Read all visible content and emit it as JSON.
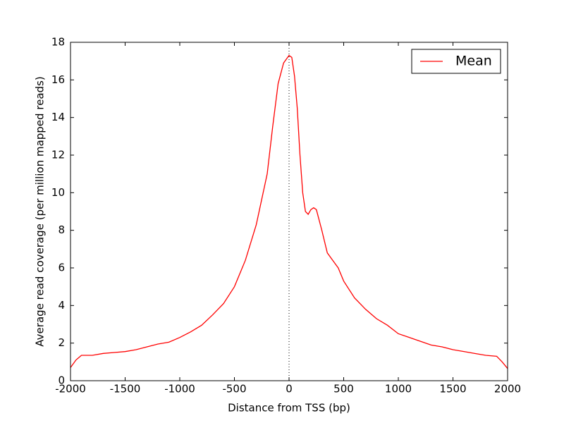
{
  "chart_data": {
    "type": "line",
    "x_label": "Distance from TSS (bp)",
    "y_label": "Average read coverage (per million mapped reads)",
    "x": [
      -2000,
      -1950,
      -1900,
      -1800,
      -1700,
      -1600,
      -1500,
      -1400,
      -1300,
      -1200,
      -1100,
      -1000,
      -900,
      -800,
      -700,
      -600,
      -500,
      -400,
      -300,
      -200,
      -150,
      -100,
      -50,
      0,
      25,
      50,
      75,
      100,
      125,
      150,
      175,
      200,
      225,
      250,
      300,
      350,
      400,
      450,
      500,
      600,
      700,
      800,
      900,
      1000,
      1100,
      1200,
      1300,
      1400,
      1500,
      1600,
      1700,
      1800,
      1900,
      1950,
      2000
    ],
    "series": [
      {
        "name": "Mean",
        "color": "#ff0000",
        "values": [
          0.7,
          1.1,
          1.35,
          1.35,
          1.45,
          1.5,
          1.55,
          1.65,
          1.8,
          1.95,
          2.05,
          2.3,
          2.6,
          2.95,
          3.5,
          4.1,
          5.0,
          6.4,
          8.3,
          11.0,
          13.5,
          15.8,
          16.9,
          17.3,
          17.2,
          16.2,
          14.5,
          12.0,
          10.0,
          9.0,
          8.85,
          9.1,
          9.2,
          9.1,
          8.0,
          6.8,
          6.4,
          6.0,
          5.3,
          4.4,
          3.8,
          3.3,
          2.95,
          2.5,
          2.3,
          2.1,
          1.9,
          1.8,
          1.65,
          1.55,
          1.45,
          1.35,
          1.3,
          1.0,
          0.65
        ]
      }
    ],
    "xlim": [
      -2000,
      2000
    ],
    "xticks": [
      -2000,
      -1500,
      -1000,
      -500,
      0,
      500,
      1000,
      1500,
      2000
    ],
    "ylim": [
      0,
      18
    ],
    "yticks": [
      0,
      2,
      4,
      6,
      8,
      10,
      12,
      14,
      16,
      18
    ],
    "vline": 0,
    "legend": "upper right",
    "grid": false
  }
}
